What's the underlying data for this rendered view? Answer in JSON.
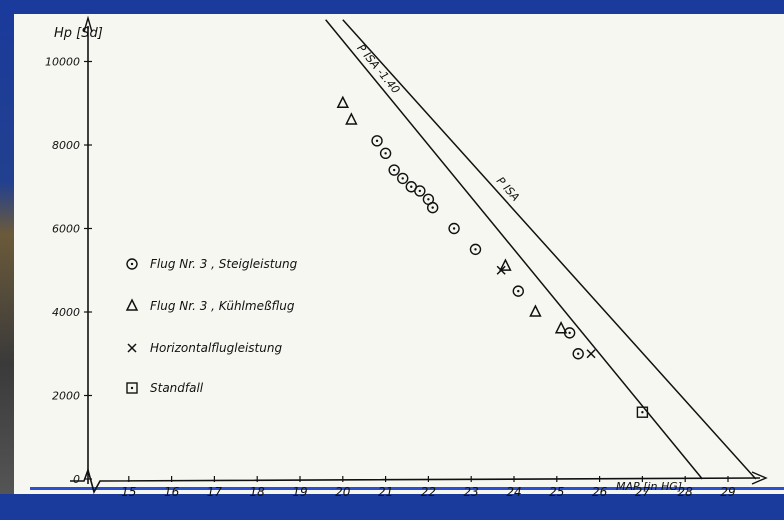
{
  "chart_data": {
    "type": "scatter",
    "title": "",
    "xlabel": "MAP [in HG]",
    "ylabel": "Hp [Sd]",
    "xlim": [
      14,
      30
    ],
    "ylim": [
      0,
      11000
    ],
    "x_ticks": [
      "15",
      "16",
      "17",
      "18",
      "19",
      "20",
      "21",
      "22",
      "23",
      "24",
      "25",
      "26",
      "27",
      "28",
      "29"
    ],
    "y_ticks": [
      {
        "value": 10000,
        "label": "10000"
      },
      {
        "value": 8000,
        "label": "8000"
      },
      {
        "value": 6000,
        "label": "6000"
      },
      {
        "value": 4000,
        "label": "4000"
      },
      {
        "value": 2000,
        "label": "2000"
      },
      {
        "value": 0,
        "label": "0"
      }
    ],
    "lines": [
      {
        "label": "P ISA -1.40",
        "points": [
          [
            19.6,
            11000
          ],
          [
            28.4,
            0
          ]
        ]
      },
      {
        "label": "P ISA",
        "points": [
          [
            20.0,
            11000
          ],
          [
            29.65,
            0
          ]
        ]
      }
    ],
    "legend": [
      {
        "marker": "circle",
        "label": "Flug Nr. 3 , Steigleistung"
      },
      {
        "marker": "triangle",
        "label": "Flug Nr. 3 , Kühlmeßflug"
      },
      {
        "marker": "x",
        "label": "Horizontalflugleistung"
      },
      {
        "marker": "square",
        "label": "Standfall"
      }
    ],
    "series": [
      {
        "marker": "circle",
        "points": [
          [
            20.8,
            8100
          ],
          [
            21.0,
            7800
          ],
          [
            21.2,
            7400
          ],
          [
            21.4,
            7200
          ],
          [
            21.6,
            7000
          ],
          [
            21.8,
            6900
          ],
          [
            22.0,
            6700
          ],
          [
            22.1,
            6500
          ],
          [
            22.6,
            6000
          ],
          [
            23.1,
            5500
          ],
          [
            24.1,
            4500
          ],
          [
            25.3,
            3500
          ],
          [
            25.5,
            3000
          ]
        ]
      },
      {
        "marker": "triangle",
        "points": [
          [
            20.0,
            9000
          ],
          [
            20.2,
            8600
          ],
          [
            23.8,
            5100
          ],
          [
            24.5,
            4000
          ],
          [
            25.1,
            3600
          ]
        ]
      },
      {
        "marker": "x",
        "points": [
          [
            23.7,
            5000
          ],
          [
            25.8,
            3000
          ]
        ]
      },
      {
        "marker": "square",
        "points": [
          [
            27.0,
            1600
          ]
        ]
      }
    ]
  }
}
